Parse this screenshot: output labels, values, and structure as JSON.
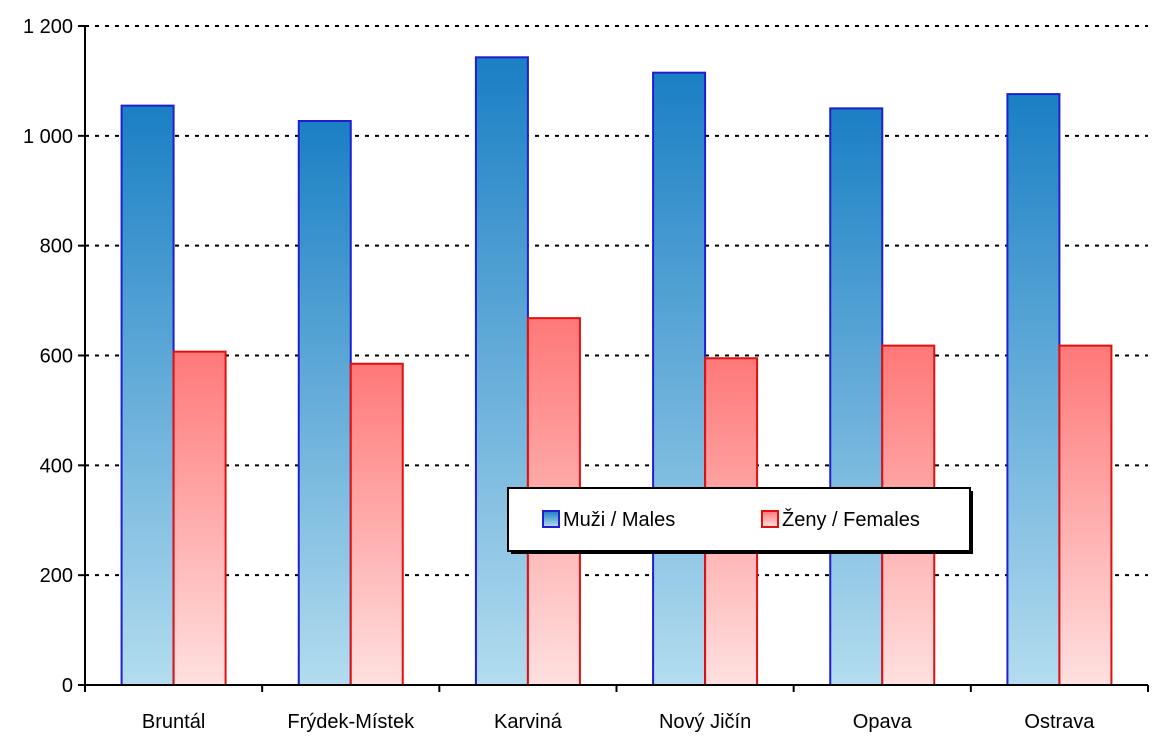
{
  "chart_data": {
    "type": "bar",
    "categories": [
      "Bruntál",
      "Frýdek-Místek",
      "Karviná",
      "Nový Jičín",
      "Opava",
      "Ostrava"
    ],
    "series": [
      {
        "name": "Muži / Males",
        "values": [
          1055,
          1027,
          1143,
          1115,
          1050,
          1076
        ],
        "color": "#1a7fc4",
        "border": "#1f1fd0"
      },
      {
        "name": "Ženy / Females",
        "values": [
          607,
          585,
          668,
          595,
          618,
          618
        ],
        "color": "#ff7f7f",
        "border": "#e01010"
      }
    ],
    "ylim": [
      0,
      1200
    ],
    "yticks": [
      0,
      200,
      400,
      600,
      800,
      1000,
      1200
    ],
    "ytick_labels": [
      "0",
      "200",
      "400",
      "600",
      "800",
      "1 000",
      "1 200"
    ],
    "grid": "horizontal dotted",
    "legend": "inside, lower center"
  }
}
